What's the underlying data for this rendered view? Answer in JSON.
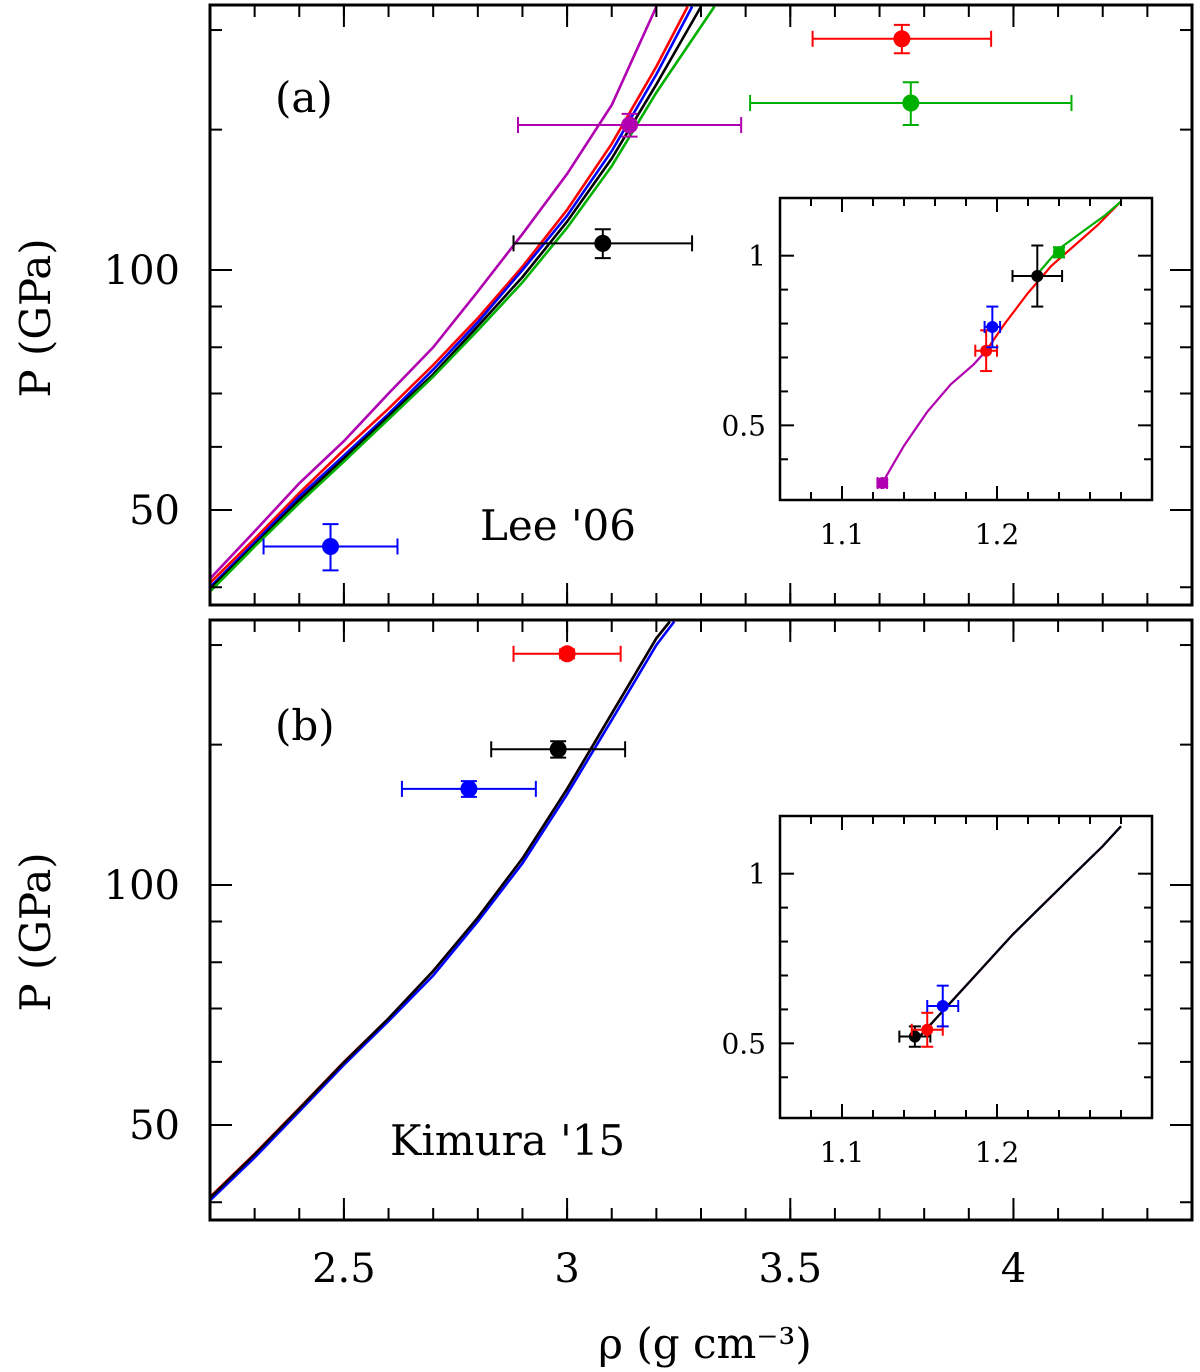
{
  "chart_data": [
    {
      "type": "line",
      "panel": "(a)",
      "annotation": "Lee '06",
      "xlabel": "ρ (g cm⁻³)",
      "ylabel": "P (GPa)",
      "xlim": [
        2.2,
        4.4
      ],
      "ylim": [
        38,
        215
      ],
      "yscale": "log",
      "xticks": [
        2.5,
        3,
        3.5,
        4
      ],
      "xtick_labels": [
        "2.5",
        "3",
        "3.5",
        "4"
      ],
      "yticks": [
        50,
        100
      ],
      "ytick_labels": [
        "50",
        "100"
      ],
      "series": [
        {
          "name": "magenta",
          "color": "#b000b0",
          "x": [
            2.2,
            2.3,
            2.4,
            2.5,
            2.6,
            2.7,
            2.8,
            2.9,
            3.0,
            3.1,
            3.2
          ],
          "y": [
            41,
            47,
            54,
            61,
            70,
            80,
            94,
            111,
            132,
            161,
            214
          ]
        },
        {
          "name": "red",
          "color": "#ff0000",
          "x": [
            2.2,
            2.3,
            2.4,
            2.5,
            2.6,
            2.7,
            2.8,
            2.9,
            3.0,
            3.1,
            3.2,
            3.27
          ],
          "y": [
            40.5,
            46,
            52.5,
            59.5,
            67,
            76,
            87,
            101,
            119,
            144,
            180,
            214
          ]
        },
        {
          "name": "blue",
          "color": "#0000ff",
          "x": [
            2.2,
            2.3,
            2.4,
            2.5,
            2.6,
            2.7,
            2.8,
            2.9,
            3.0,
            3.1,
            3.2,
            3.28
          ],
          "y": [
            40,
            45.5,
            52,
            58.5,
            66,
            75,
            86,
            100,
            117,
            141,
            176,
            214
          ]
        },
        {
          "name": "black",
          "color": "#000000",
          "x": [
            2.2,
            2.3,
            2.4,
            2.5,
            2.6,
            2.7,
            2.8,
            2.9,
            3.0,
            3.1,
            3.2,
            3.3
          ],
          "y": [
            39.8,
            45.2,
            51.5,
            58,
            65.5,
            74,
            85,
            98,
            115,
            138,
            171,
            214
          ]
        },
        {
          "name": "green",
          "color": "#00b000",
          "x": [
            2.2,
            2.3,
            2.4,
            2.5,
            2.6,
            2.7,
            2.8,
            2.9,
            3.0,
            3.1,
            3.2,
            3.33
          ],
          "y": [
            39.5,
            45,
            51,
            57.5,
            65,
            73.5,
            84,
            96.5,
            113,
            135,
            167,
            214
          ]
        }
      ],
      "points": [
        {
          "color": "#ff0000",
          "x": 3.75,
          "xerr": 0.2,
          "y": 195,
          "yerr": [
            8,
            8
          ]
        },
        {
          "color": "#00b000",
          "x": 3.77,
          "xerr": 0.36,
          "y": 162,
          "yerr": [
            10,
            10
          ]
        },
        {
          "color": "#b000b0",
          "x": 3.14,
          "xerr": 0.25,
          "y": 152,
          "yerr": [
            5,
            5
          ]
        },
        {
          "color": "#000000",
          "x": 3.08,
          "xerr": 0.2,
          "y": 108,
          "yerr": [
            4.5,
            4.5
          ]
        },
        {
          "color": "#0000ff",
          "x": 2.47,
          "xerr": 0.15,
          "y": 45,
          "yerr": [
            3,
            3
          ]
        }
      ],
      "inset": {
        "xlim": [
          1.06,
          1.3
        ],
        "ylim": [
          0.28,
          1.17
        ],
        "xticks": [
          1.1,
          1.2
        ],
        "xtick_labels": [
          "1.1",
          "1.2"
        ],
        "yticks": [
          0.5,
          1
        ],
        "ytick_labels": [
          "0.5",
          "1"
        ],
        "series": [
          {
            "name": "magenta",
            "color": "#b000b0",
            "x": [
              1.126,
              1.14,
              1.155,
              1.17,
              1.185,
              1.193
            ],
            "y": [
              0.33,
              0.44,
              0.54,
              0.62,
              0.68,
              0.72
            ]
          },
          {
            "name": "red",
            "color": "#ff0000",
            "x": [
              1.193,
              1.205,
              1.22,
              1.235,
              1.25,
              1.265,
              1.28
            ],
            "y": [
              0.72,
              0.8,
              0.89,
              0.97,
              1.03,
              1.09,
              1.16
            ]
          },
          {
            "name": "green",
            "color": "#00b000",
            "x": [
              1.225,
              1.24,
              1.255,
              1.27,
              1.28
            ],
            "y": [
              0.94,
              1.02,
              1.07,
              1.12,
              1.16
            ]
          }
        ],
        "points": [
          {
            "color": "#b000b0",
            "x": 1.126,
            "xerr": 0.003,
            "y": 0.33,
            "yerr": [
              0.01,
              0.01
            ]
          },
          {
            "color": "#ff0000",
            "x": 1.193,
            "xerr": 0.007,
            "y": 0.72,
            "yerr": [
              0.06,
              0.06
            ]
          },
          {
            "color": "#0000ff",
            "x": 1.197,
            "xerr": 0.005,
            "y": 0.79,
            "yerr": [
              0.06,
              0.06
            ]
          },
          {
            "color": "#000000",
            "x": 1.226,
            "xerr": 0.016,
            "y": 0.94,
            "yerr": [
              0.09,
              0.09
            ]
          },
          {
            "color": "#00b000",
            "x": 1.24,
            "xerr": 0.003,
            "y": 1.01,
            "yerr": [
              0.015,
              0.015
            ]
          }
        ]
      }
    },
    {
      "type": "line",
      "panel": "(b)",
      "annotation": "Kimura '15",
      "xlabel": "ρ (g cm⁻³)",
      "ylabel": "P (GPa)",
      "xlim": [
        2.2,
        4.4
      ],
      "ylim": [
        38,
        215
      ],
      "yscale": "log",
      "xticks": [
        2.5,
        3,
        3.5,
        4
      ],
      "xtick_labels": [
        "2.5",
        "3",
        "3.5",
        "4"
      ],
      "yticks": [
        50,
        100
      ],
      "ytick_labels": [
        "50",
        "100"
      ],
      "series": [
        {
          "name": "red",
          "color": "#ff0000",
          "x": [
            2.2,
            2.3,
            2.4,
            2.5,
            2.6,
            2.7,
            2.8,
            2.9,
            3.0,
            3.1,
            3.2,
            3.23
          ],
          "y": [
            40.6,
            46,
            52.5,
            60,
            68,
            78,
            91,
            108,
            132,
            164,
            204,
            214
          ]
        },
        {
          "name": "blue",
          "color": "#0000ff",
          "x": [
            2.2,
            2.3,
            2.4,
            2.5,
            2.6,
            2.7,
            2.8,
            2.9,
            3.0,
            3.1,
            3.2,
            3.24
          ],
          "y": [
            40.2,
            45.5,
            52,
            59.5,
            67.5,
            77,
            90,
            106.5,
            130,
            161,
            200,
            214
          ]
        },
        {
          "name": "black",
          "color": "#000000",
          "x": [
            2.2,
            2.3,
            2.4,
            2.5,
            2.6,
            2.7,
            2.8,
            2.9,
            3.0,
            3.1,
            3.2,
            3.23
          ],
          "y": [
            40.5,
            45.9,
            52.4,
            59.9,
            68,
            78,
            91,
            108,
            132,
            164,
            204,
            214
          ]
        }
      ],
      "points": [
        {
          "color": "#ff0000",
          "x": 3.0,
          "xerr": 0.12,
          "y": 195,
          "yerr": [
            2.5,
            2.5
          ]
        },
        {
          "color": "#000000",
          "x": 2.98,
          "xerr": 0.15,
          "y": 148,
          "yerr": [
            3.5,
            3.5
          ]
        },
        {
          "color": "#0000ff",
          "x": 2.78,
          "xerr": 0.15,
          "y": 132,
          "yerr": [
            3,
            3
          ]
        }
      ],
      "inset": {
        "xlim": [
          1.06,
          1.3
        ],
        "ylim": [
          0.28,
          1.17
        ],
        "xticks": [
          1.1,
          1.2
        ],
        "xtick_labels": [
          "1.1",
          "1.2"
        ],
        "yticks": [
          0.5,
          1
        ],
        "ytick_labels": [
          "0.5",
          "1"
        ],
        "series": [
          {
            "name": "red",
            "color": "#ff0000",
            "x": [
              1.15,
              1.17,
              1.19,
              1.21,
              1.23,
              1.25,
              1.268,
              1.28
            ],
            "y": [
              0.52,
              0.62,
              0.72,
              0.82,
              0.91,
              1.0,
              1.08,
              1.14
            ]
          },
          {
            "name": "blue",
            "color": "#0000ff",
            "x": [
              1.15,
              1.17,
              1.19,
              1.21,
              1.23,
              1.25,
              1.268,
              1.28
            ],
            "y": [
              0.52,
              0.62,
              0.72,
              0.82,
              0.91,
              1.0,
              1.08,
              1.14
            ]
          },
          {
            "name": "black",
            "color": "#000000",
            "x": [
              1.15,
              1.17,
              1.19,
              1.21,
              1.23,
              1.25,
              1.268,
              1.28
            ],
            "y": [
              0.52,
              0.62,
              0.72,
              0.82,
              0.91,
              1.0,
              1.08,
              1.14
            ]
          }
        ],
        "points": [
          {
            "color": "#000000",
            "x": 1.147,
            "xerr": 0.01,
            "y": 0.52,
            "yerr": [
              0.03,
              0.03
            ]
          },
          {
            "color": "#ff0000",
            "x": 1.155,
            "xerr": 0.01,
            "y": 0.54,
            "yerr": [
              0.05,
              0.05
            ]
          },
          {
            "color": "#0000ff",
            "x": 1.165,
            "xerr": 0.01,
            "y": 0.61,
            "yerr": [
              0.06,
              0.06
            ]
          }
        ]
      }
    }
  ]
}
